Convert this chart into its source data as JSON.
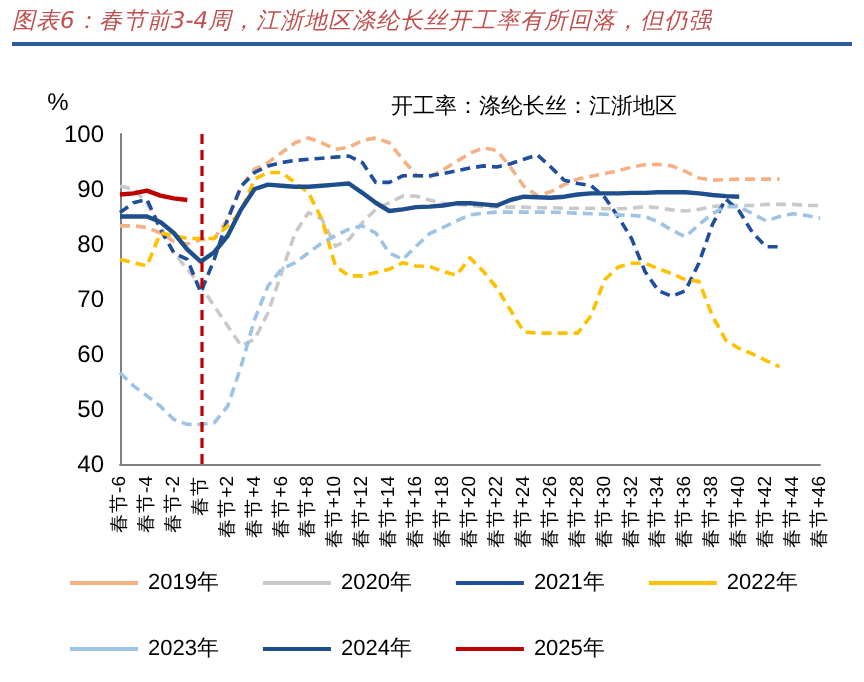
{
  "chart_data": {
    "type": "line",
    "title": "图表6：春节前3-4周，江浙地区涤纶长丝开工率有所回落，但仍强",
    "subtitle": "开工率：涤纶长丝：江浙地区",
    "ylabel": "%",
    "categories": [
      "春节-6",
      null,
      "春节-4",
      null,
      "春节-2",
      null,
      "春节",
      null,
      "春节+2",
      null,
      "春节+4",
      null,
      "春节+6",
      null,
      "春节+8",
      null,
      "春节+10",
      null,
      "春节+12",
      null,
      "春节+14",
      null,
      "春节+16",
      null,
      "春节+18",
      null,
      "春节+20",
      null,
      "春节+22",
      null,
      "春节+24",
      null,
      "春节+26",
      null,
      "春节+28",
      null,
      "春节+30",
      null,
      "春节+32",
      null,
      "春节+34",
      null,
      "春节+36",
      null,
      "春节+38",
      null,
      "春节+40",
      null,
      "春节+42",
      null,
      "春节+44",
      null,
      "春节+46"
    ],
    "series": [
      {
        "name": "2019年",
        "color": "#f4b183",
        "line_style": "dashed",
        "values": [
          83.3,
          83.3,
          83,
          82,
          80.5,
          80,
          80.8,
          81,
          84.5,
          90.5,
          93.6,
          94.8,
          96.6,
          98.4,
          99.3,
          98.4,
          97.2,
          97.6,
          98.8,
          99.3,
          98.4,
          95.4,
          92.5,
          92.2,
          93.5,
          95,
          96.5,
          97.5,
          97,
          94,
          90.5,
          88.8,
          89.5,
          90.8,
          91.8,
          92.3,
          92.8,
          93.3,
          94,
          94.4,
          94.5,
          94.2,
          93.2,
          92,
          91.6,
          91.7,
          91.8,
          91.8,
          91.8,
          91.8,
          null,
          null,
          null
        ]
      },
      {
        "name": "2020年",
        "color": "#c9c9c9",
        "line_style": "dashed",
        "values": [
          90.5,
          90,
          87.5,
          83.3,
          78.4,
          75.4,
          72.4,
          68.7,
          65.1,
          61.5,
          62.7,
          67.5,
          74.8,
          82,
          85.7,
          84.5,
          79.6,
          80.8,
          83.9,
          86.3,
          87.5,
          88.7,
          88.7,
          88,
          87.4,
          87.2,
          87,
          86.8,
          86.8,
          86.7,
          86.7,
          86.6,
          86.6,
          86.5,
          86.5,
          86.5,
          86.4,
          86.4,
          86.5,
          86.8,
          86.6,
          86.2,
          86,
          86.3,
          86.8,
          87,
          87,
          87,
          87.2,
          87.2,
          87.2,
          87,
          87
        ]
      },
      {
        "name": "2021年",
        "color": "#1f4e9c",
        "line_style": "dashed",
        "values": [
          85.7,
          87.5,
          88.1,
          82.7,
          78.4,
          77.2,
          71.2,
          77.2,
          84.5,
          90.5,
          93,
          94.2,
          94.8,
          95.2,
          95.4,
          95.6,
          95.8,
          96,
          94.8,
          91.2,
          91.2,
          92.4,
          92.4,
          92.4,
          92.8,
          93.3,
          93.8,
          94.2,
          94,
          94.6,
          95.4,
          96.2,
          94,
          91.6,
          91,
          90.6,
          88.5,
          85,
          81,
          75,
          71.5,
          70.5,
          71.5,
          76.5,
          83.5,
          88.2,
          86,
          82,
          79.5,
          79.5,
          null,
          null,
          null
        ]
      },
      {
        "name": "2022年",
        "color": "#ffc000",
        "line_style": "dashed",
        "values": [
          77.2,
          76.6,
          76,
          82,
          81.5,
          81,
          81,
          81,
          83.3,
          86,
          91.8,
          93,
          93,
          91.2,
          89.3,
          84.5,
          76,
          74.2,
          74.2,
          74.8,
          75.4,
          76.6,
          76,
          75.9,
          75,
          74.3,
          77.5,
          75,
          72,
          68,
          64,
          63.8,
          63.8,
          63.8,
          63.8,
          67,
          73.5,
          75.8,
          76.5,
          76.5,
          75.5,
          74.6,
          73.5,
          73.2,
          67,
          62.5,
          61,
          60,
          58.8,
          57.7,
          null,
          null,
          null
        ]
      },
      {
        "name": "2023年",
        "color": "#9dc3e6",
        "line_style": "dashed",
        "values": [
          56.6,
          54.2,
          52.4,
          50.5,
          48.1,
          47.2,
          47.2,
          47.5,
          50.5,
          57.8,
          66.3,
          72.4,
          75.4,
          76.6,
          78.4,
          80.2,
          81.5,
          82.7,
          83.3,
          82,
          78.4,
          77.2,
          79.6,
          81.9,
          83,
          84.2,
          85.3,
          85.6,
          85.8,
          85.8,
          85.8,
          85.8,
          85.8,
          85.7,
          85.6,
          85.5,
          85.4,
          85.3,
          85.2,
          85,
          84,
          82.5,
          81.3,
          83.5,
          85.5,
          86.8,
          86.8,
          85.5,
          84.2,
          85,
          85.5,
          85.2,
          84.7
        ]
      },
      {
        "name": "2024年",
        "color": "#1f4e8c",
        "line_style": "solid",
        "values": [
          85,
          85,
          85,
          84,
          82,
          79,
          76.8,
          78.5,
          81.5,
          86.3,
          90,
          90.8,
          90.6,
          90.4,
          90.4,
          90.6,
          90.8,
          91,
          89.3,
          87.5,
          86,
          86.3,
          86.7,
          86.8,
          87,
          87.4,
          87.4,
          87.2,
          87,
          88,
          88.6,
          88.5,
          88.4,
          88.6,
          89,
          89.2,
          89.2,
          89.2,
          89.3,
          89.3,
          89.4,
          89.4,
          89.4,
          89.2,
          88.9,
          88.7,
          88.6,
          null,
          null,
          null,
          null,
          null,
          null
        ]
      },
      {
        "name": "2025年",
        "color": "#c00000",
        "line_style": "solid",
        "values": [
          89,
          89.2,
          89.7,
          88.8,
          88.3,
          88,
          null,
          null,
          null,
          null,
          null,
          null,
          null,
          null,
          null,
          null,
          null,
          null,
          null,
          null,
          null,
          null,
          null,
          null,
          null,
          null,
          null,
          null,
          null,
          null,
          null,
          null,
          null,
          null,
          null,
          null,
          null,
          null,
          null,
          null,
          null,
          null,
          null,
          null,
          null,
          null,
          null,
          null,
          null,
          null,
          null,
          null,
          null
        ]
      }
    ],
    "ylim": [
      40,
      100
    ],
    "yticks": [
      40,
      50,
      60,
      70,
      80,
      90,
      100
    ],
    "ref_lines": [
      {
        "axis": "x",
        "value": "春节",
        "color": "#c00000",
        "line_style": "dashed"
      }
    ],
    "grid": false,
    "legend": "bottom",
    "marker": "none"
  }
}
